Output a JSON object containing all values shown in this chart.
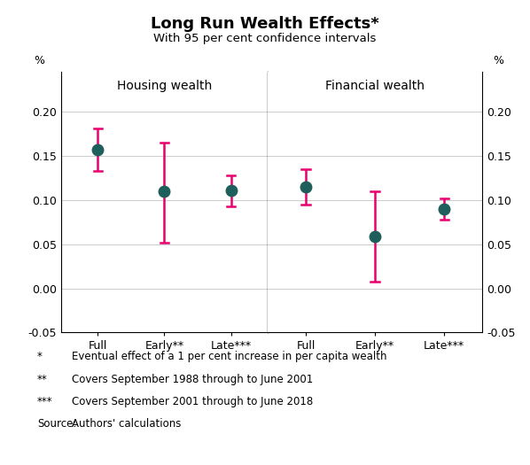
{
  "title": "Long Run Wealth Effects*",
  "subtitle": "With 95 per cent confidence intervals",
  "housing_labels": [
    "Full",
    "Early**",
    "Late***"
  ],
  "financial_labels": [
    "Full",
    "Early**",
    "Late***"
  ],
  "housing_values": [
    0.157,
    0.11,
    0.111
  ],
  "financial_values": [
    0.115,
    0.059,
    0.09
  ],
  "housing_ci_low": [
    0.133,
    0.052,
    0.093
  ],
  "housing_ci_high": [
    0.181,
    0.165,
    0.128
  ],
  "financial_ci_low": [
    0.095,
    0.008,
    0.078
  ],
  "financial_ci_high": [
    0.135,
    0.11,
    0.102
  ],
  "ylim": [
    -0.05,
    0.245
  ],
  "yticks": [
    -0.05,
    0.0,
    0.05,
    0.1,
    0.15,
    0.2
  ],
  "dot_color": "#1f5f5b",
  "ci_color": "#e8006e",
  "panel_left_label": "Housing wealth",
  "panel_right_label": "Financial wealth",
  "footnote1_sym": "*",
  "footnote1_txt": "Eventual effect of a 1 per cent increase in per capita wealth",
  "footnote2_sym": "**",
  "footnote2_txt": "Covers September 1988 through to June 2001",
  "footnote3_sym": "***",
  "footnote3_txt": "Covers September 2001 through to June 2018",
  "footnote4_sym": "Source:",
  "footnote4_txt": "Authors' calculations"
}
